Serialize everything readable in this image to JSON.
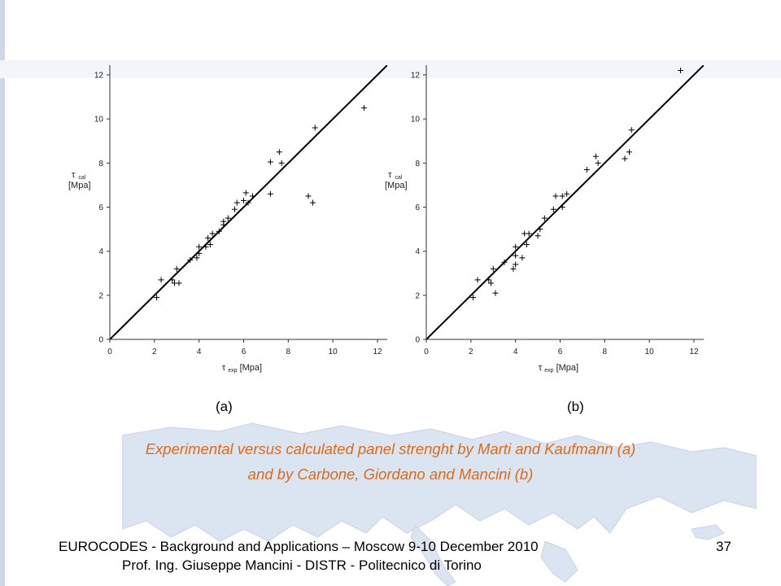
{
  "chart_data": [
    {
      "type": "scatter",
      "panel_label": "(a)",
      "xlim": [
        0,
        12
      ],
      "ylim": [
        0,
        12
      ],
      "xticks": [
        0,
        2,
        4,
        6,
        8,
        10,
        12
      ],
      "yticks": [
        0,
        2,
        4,
        6,
        8,
        10,
        12
      ],
      "xlabel_symbol": "τ",
      "xlabel_sub": "exp",
      "xlabel_unit": "[Mpa]",
      "ylabel_symbol": "τ",
      "ylabel_sub": "cal",
      "ylabel_unit": "[Mpa]",
      "reference_line": [
        [
          0,
          0
        ],
        [
          12.8,
          12.8
        ]
      ],
      "marker": "+",
      "points": [
        [
          2.1,
          1.9
        ],
        [
          2.3,
          2.7
        ],
        [
          2.8,
          2.7
        ],
        [
          2.9,
          2.55
        ],
        [
          3.0,
          3.2
        ],
        [
          3.1,
          2.55
        ],
        [
          3.6,
          3.6
        ],
        [
          3.9,
          3.7
        ],
        [
          4.0,
          3.9
        ],
        [
          4.0,
          4.2
        ],
        [
          4.3,
          4.2
        ],
        [
          4.4,
          4.6
        ],
        [
          4.5,
          4.3
        ],
        [
          4.6,
          4.8
        ],
        [
          4.9,
          4.9
        ],
        [
          5.1,
          5.2
        ],
        [
          5.1,
          5.35
        ],
        [
          5.3,
          5.5
        ],
        [
          5.6,
          5.9
        ],
        [
          5.7,
          6.2
        ],
        [
          6.0,
          6.3
        ],
        [
          6.1,
          6.65
        ],
        [
          6.2,
          6.2
        ],
        [
          6.4,
          6.5
        ],
        [
          7.2,
          6.6
        ],
        [
          7.2,
          8.05
        ],
        [
          7.6,
          8.5
        ],
        [
          7.7,
          8.0
        ],
        [
          8.9,
          6.5
        ],
        [
          9.1,
          6.2
        ],
        [
          9.2,
          9.6
        ],
        [
          11.4,
          10.5
        ]
      ]
    },
    {
      "type": "scatter",
      "panel_label": "(b)",
      "xlim": [
        0,
        12
      ],
      "ylim": [
        0,
        12
      ],
      "xticks": [
        0,
        2,
        4,
        6,
        8,
        10,
        12
      ],
      "yticks": [
        0,
        2,
        4,
        6,
        8,
        10,
        12
      ],
      "xlabel_symbol": "τ",
      "xlabel_sub": "exp",
      "xlabel_unit": "[Mpa]",
      "ylabel_symbol": "τ",
      "ylabel_sub": "cal",
      "ylabel_unit": "[Mpa]",
      "reference_line": [
        [
          0,
          0
        ],
        [
          12.8,
          12.8
        ]
      ],
      "marker": "+",
      "points": [
        [
          2.1,
          1.9
        ],
        [
          2.3,
          2.7
        ],
        [
          2.8,
          2.7
        ],
        [
          2.9,
          2.55
        ],
        [
          3.0,
          3.2
        ],
        [
          3.1,
          2.1
        ],
        [
          3.5,
          3.5
        ],
        [
          3.9,
          3.2
        ],
        [
          4.0,
          3.4
        ],
        [
          4.0,
          3.8
        ],
        [
          4.0,
          4.2
        ],
        [
          4.3,
          3.7
        ],
        [
          4.4,
          4.8
        ],
        [
          4.5,
          4.3
        ],
        [
          4.6,
          4.8
        ],
        [
          5.0,
          4.7
        ],
        [
          5.1,
          5.0
        ],
        [
          5.3,
          5.5
        ],
        [
          5.7,
          5.9
        ],
        [
          5.8,
          6.5
        ],
        [
          6.1,
          6.5
        ],
        [
          6.1,
          6.0
        ],
        [
          6.3,
          6.6
        ],
        [
          7.2,
          7.7
        ],
        [
          7.6,
          8.3
        ],
        [
          7.7,
          8.0
        ],
        [
          8.9,
          8.2
        ],
        [
          9.1,
          8.5
        ],
        [
          9.2,
          9.5
        ],
        [
          11.4,
          12.2
        ]
      ]
    }
  ],
  "caption_line1": "Experimental versus calculated panel strenght by Marti and Kaufmann (a)",
  "caption_line2": "and by Carbone, Giordano and Mancini (b)",
  "footer_line1": "EUROCODES - Background and Applications – Moscow 9-10 December 2010",
  "footer_line2": "Prof. Ing. Giuseppe Mancini - DISTR - Politecnico di Torino",
  "page_number": "37",
  "colors": {
    "caption": "#e06a17",
    "map_land": "#d9e3f1",
    "left_strip": "#cdd8ea"
  }
}
